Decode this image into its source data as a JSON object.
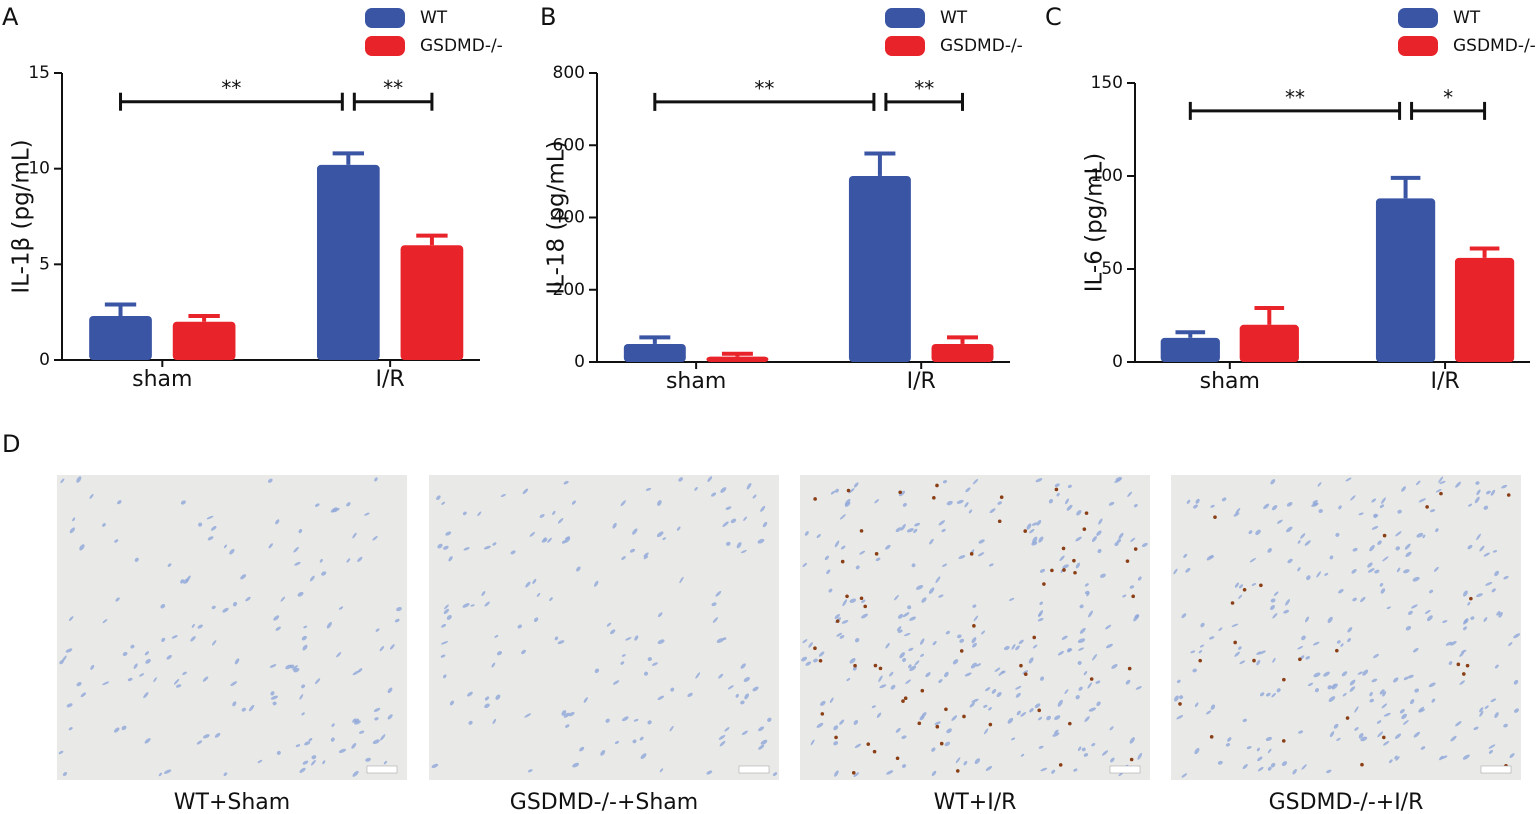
{
  "chart_data": [
    {
      "type": "bar",
      "panel": "A",
      "y_label": "IL-1β (pg/mL)",
      "categories": [
        "sham",
        "I/R"
      ],
      "series": [
        {
          "name": "WT",
          "color": "#3a55a4",
          "values": [
            2.3,
            10.2
          ],
          "errors": [
            0.6,
            0.6
          ]
        },
        {
          "name": "GSDMD-/-",
          "color": "#e8232a",
          "values": [
            2.0,
            6.0
          ],
          "errors": [
            0.3,
            0.5
          ]
        }
      ],
      "ylim": [
        0,
        15
      ],
      "yticks": [
        0,
        5,
        10,
        15
      ],
      "annotations": [
        "**",
        "**"
      ]
    },
    {
      "type": "bar",
      "panel": "B",
      "y_label": "IL-18 (pg/mL)",
      "categories": [
        "sham",
        "I/R"
      ],
      "series": [
        {
          "name": "WT",
          "color": "#3a55a4",
          "values": [
            50,
            515
          ],
          "errors": [
            18,
            62
          ]
        },
        {
          "name": "GSDMD-/-",
          "color": "#e8232a",
          "values": [
            15,
            50
          ],
          "errors": [
            8,
            18
          ]
        }
      ],
      "ylim": [
        0,
        800
      ],
      "yticks": [
        0,
        200,
        400,
        600,
        800
      ],
      "annotations": [
        "**",
        "**"
      ]
    },
    {
      "type": "bar",
      "panel": "C",
      "y_label": "IL-6 (pg/mL)",
      "categories": [
        "sham",
        "I/R"
      ],
      "series": [
        {
          "name": "WT",
          "color": "#3a55a4",
          "values": [
            13,
            88
          ],
          "errors": [
            3,
            11
          ]
        },
        {
          "name": "GSDMD-/-",
          "color": "#e8232a",
          "values": [
            20,
            56
          ],
          "errors": [
            9,
            5
          ]
        }
      ],
      "ylim": [
        0,
        150
      ],
      "yticks": [
        0,
        50,
        100,
        150
      ],
      "annotations": [
        "**",
        "*"
      ]
    }
  ],
  "panel_d": {
    "label": "D",
    "images": [
      {
        "caption": "WT+Sham"
      },
      {
        "caption": "GSDMD-/-+Sham"
      },
      {
        "caption": "WT+I/R"
      },
      {
        "caption": "GSDMD-/-+I/R"
      }
    ]
  }
}
